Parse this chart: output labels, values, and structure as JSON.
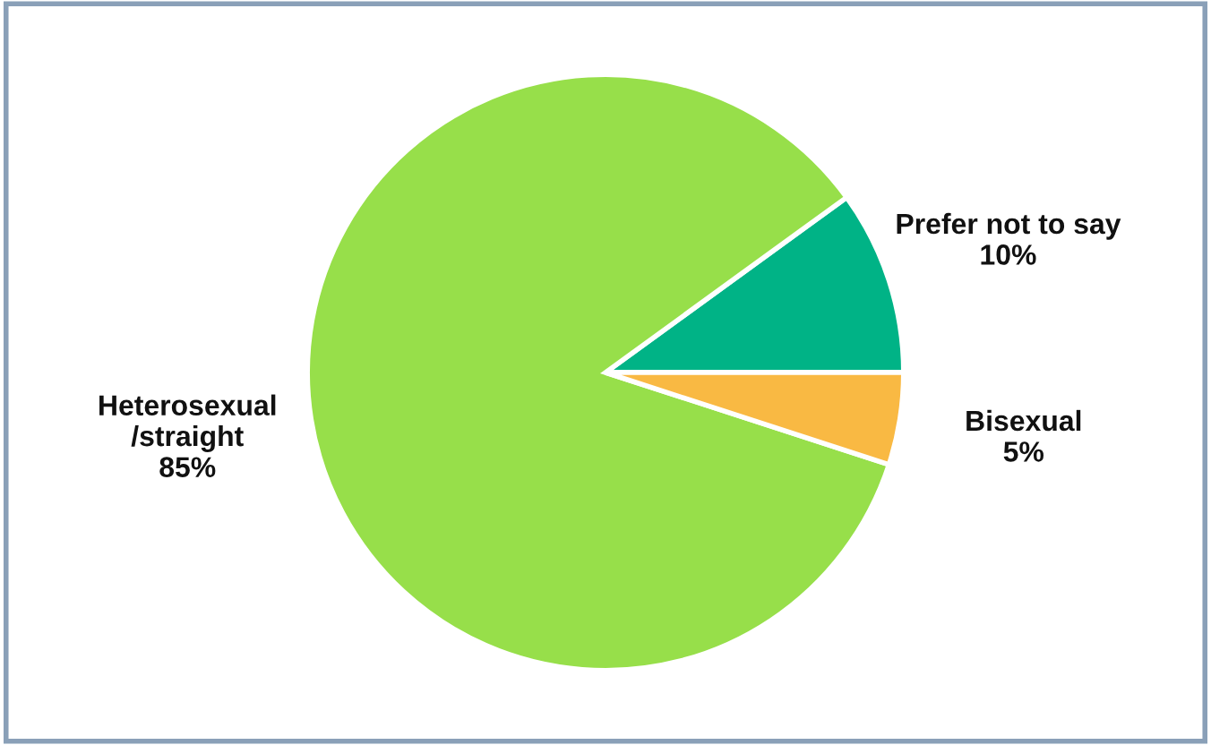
{
  "chart_data": {
    "type": "pie",
    "categories": [
      "Prefer not to say",
      "Heterosexual\n/straight",
      "Bisexual"
    ],
    "values": [
      10,
      85,
      5
    ],
    "colors": [
      "#00b386",
      "#97df4a",
      "#f9b943"
    ],
    "value_labels": [
      "10%",
      "85%",
      "5%"
    ]
  }
}
